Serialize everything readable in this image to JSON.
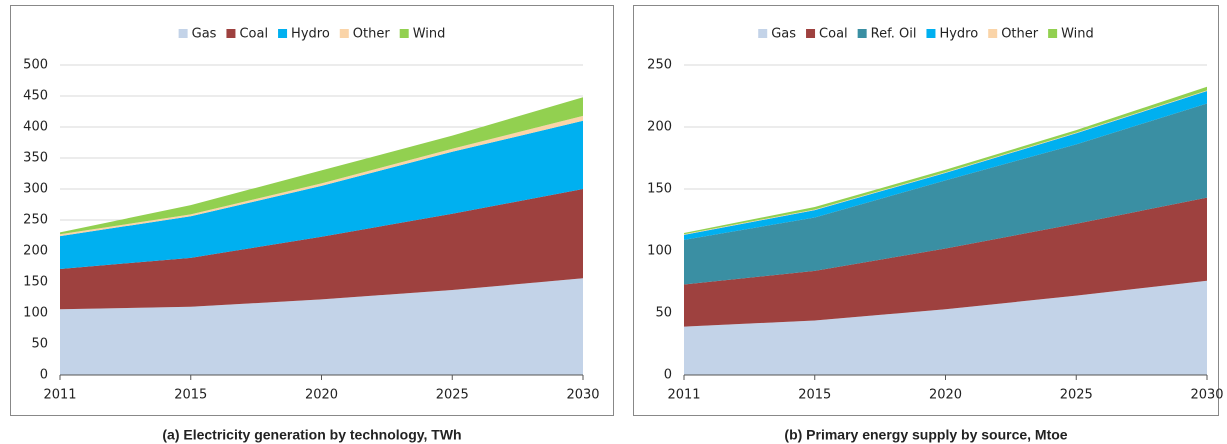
{
  "chart_data": [
    {
      "type": "stacked-area",
      "caption": "(a) Electricity generation by technology, TWh",
      "categories": [
        "2011",
        "2015",
        "2020",
        "2025",
        "2030"
      ],
      "ylim": [
        0,
        500
      ],
      "yticks": [
        0,
        50,
        100,
        150,
        200,
        250,
        300,
        350,
        400,
        450,
        500
      ],
      "grid": true,
      "legend": "top",
      "series": [
        {
          "name": "Gas",
          "color": "#c3d3e8",
          "values": [
            106,
            110,
            122,
            137,
            156
          ]
        },
        {
          "name": "Coal",
          "color": "#9e413f",
          "values": [
            65,
            79,
            101,
            123,
            144
          ]
        },
        {
          "name": "Hydro",
          "color": "#00b0f0",
          "values": [
            53,
            67,
            82,
            100,
            110
          ]
        },
        {
          "name": "Other",
          "color": "#fad4a8",
          "values": [
            3,
            3,
            4,
            5,
            8
          ]
        },
        {
          "name": "Wind",
          "color": "#92d050",
          "values": [
            3,
            15,
            21,
            21,
            30
          ]
        }
      ]
    },
    {
      "type": "stacked-area",
      "caption": "(b) Primary energy supply by source, Mtoe",
      "categories": [
        "2011",
        "2015",
        "2020",
        "2025",
        "2030"
      ],
      "ylim": [
        0,
        250
      ],
      "yticks": [
        0,
        50,
        100,
        150,
        200,
        250
      ],
      "grid": true,
      "legend": "top",
      "series": [
        {
          "name": "Gas",
          "color": "#c3d3e8",
          "values": [
            39,
            44,
            53,
            64,
            76
          ]
        },
        {
          "name": "Coal",
          "color": "#9e413f",
          "values": [
            34,
            40,
            49,
            58,
            67
          ]
        },
        {
          "name": "Ref. Oil",
          "color": "#3a8fa3",
          "values": [
            36,
            43,
            55,
            64,
            76
          ]
        },
        {
          "name": "Hydro",
          "color": "#00b0f0",
          "values": [
            4,
            6,
            6,
            9,
            10
          ]
        },
        {
          "name": "Other",
          "color": "#fad4a8",
          "values": [
            0.5,
            0.5,
            0.5,
            0.5,
            0.5
          ]
        },
        {
          "name": "Wind",
          "color": "#92d050",
          "values": [
            1,
            2,
            2,
            2,
            3
          ]
        }
      ]
    }
  ]
}
